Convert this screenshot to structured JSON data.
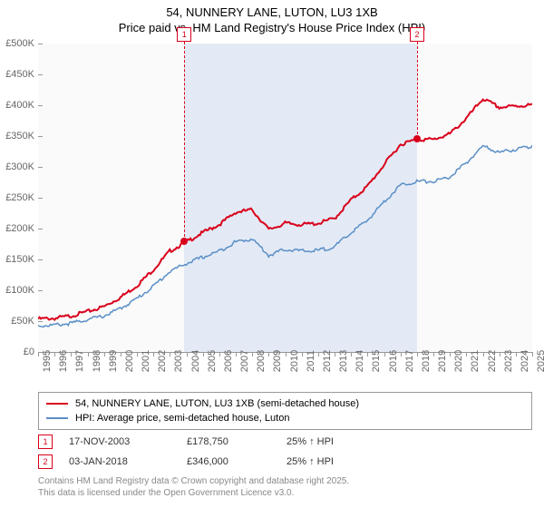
{
  "title_line1": "54, NUNNERY LANE, LUTON, LU3 1XB",
  "title_line2": "Price paid vs. HM Land Registry's House Price Index (HPI)",
  "chart": {
    "type": "line",
    "x_years": [
      1995,
      1996,
      1997,
      1998,
      1999,
      2000,
      2001,
      2002,
      2003,
      2004,
      2005,
      2006,
      2007,
      2008,
      2009,
      2010,
      2011,
      2012,
      2013,
      2014,
      2015,
      2016,
      2017,
      2018,
      2019,
      2020,
      2021,
      2022,
      2023,
      2024,
      2025
    ],
    "ylim": [
      0,
      500000
    ],
    "ytick_step": 50000,
    "ytick_labels": [
      "£0",
      "£50K",
      "£100K",
      "£150K",
      "£200K",
      "£250K",
      "£300K",
      "£350K",
      "£400K",
      "£450K",
      "£500K"
    ],
    "background_color": "#fafafa",
    "shade_color": "rgba(100,150,220,0.15)",
    "series": [
      {
        "name": "price_paid",
        "label": "54, NUNNERY LANE, LUTON, LU3 1XB (semi-detached house)",
        "color": "#d9001b",
        "line_width": 2,
        "values_by_year": {
          "1995": 55000,
          "1996": 56000,
          "1997": 60000,
          "1998": 67000,
          "1999": 75000,
          "2000": 90000,
          "2001": 109000,
          "2002": 135000,
          "2003": 165000,
          "2004": 180000,
          "2005": 195000,
          "2006": 208000,
          "2007": 228000,
          "2008": 232000,
          "2009": 200000,
          "2010": 210000,
          "2011": 208000,
          "2012": 210000,
          "2013": 218000,
          "2014": 248000,
          "2015": 270000,
          "2016": 305000,
          "2017": 338000,
          "2018": 346000,
          "2019": 346000,
          "2020": 355000,
          "2021": 380000,
          "2022": 412000,
          "2023": 398000,
          "2024": 400000,
          "2025": 402000
        }
      },
      {
        "name": "hpi",
        "label": "HPI: Average price, semi-detached house, Luton",
        "color": "#5b8fc7",
        "line_width": 1.5,
        "values_by_year": {
          "1995": 44000,
          "1996": 45000,
          "1997": 48000,
          "1998": 54000,
          "1999": 60000,
          "2000": 72000,
          "2001": 88000,
          "2002": 108000,
          "2003": 132000,
          "2004": 145000,
          "2005": 155000,
          "2006": 165000,
          "2007": 180000,
          "2008": 185000,
          "2009": 158000,
          "2010": 168000,
          "2011": 165000,
          "2012": 166000,
          "2013": 172000,
          "2014": 195000,
          "2015": 215000,
          "2016": 245000,
          "2017": 272000,
          "2018": 278000,
          "2019": 278000,
          "2020": 285000,
          "2021": 308000,
          "2022": 335000,
          "2023": 325000,
          "2024": 330000,
          "2025": 335000
        }
      }
    ],
    "transactions": [
      {
        "n": "1",
        "year": 2003.88,
        "price": 178750,
        "date": "17-NOV-2003",
        "price_label": "£178,750",
        "diff": "25% ↑ HPI"
      },
      {
        "n": "2",
        "year": 2018.01,
        "price": 346000,
        "date": "03-JAN-2018",
        "price_label": "£346,000",
        "diff": "25% ↑ HPI"
      }
    ],
    "point_color": "#d9001b"
  },
  "footer_line1": "Contains HM Land Registry data © Crown copyright and database right 2025.",
  "footer_line2": "This data is licensed under the Open Government Licence v3.0."
}
